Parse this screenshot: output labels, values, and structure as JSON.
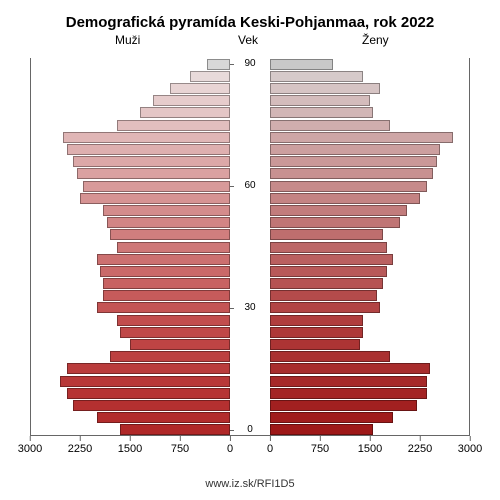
{
  "title": "Demografická pyramída Keski-Pohjanmaa, rok 2022",
  "labels": {
    "men": "Muži",
    "age": "Vek",
    "women": "Ženy"
  },
  "source": "www.iz.sk/RFI1D5",
  "chart": {
    "type": "population-pyramid",
    "x_max": 3000,
    "x_ticks": [
      0,
      750,
      1500,
      2250,
      3000
    ],
    "age_labels_every": 10,
    "age_min": 0,
    "age_max": 90,
    "bar_border_color": "rgba(0,0,0,0.35)",
    "bg_color": "#ffffff",
    "title_fontsize": 15,
    "label_fontsize": 12,
    "tick_fontsize": 11,
    "bars": [
      {
        "age": 90,
        "m": 350,
        "f": 950,
        "cm": "#d8d8d8",
        "cf": "#c8c8c8"
      },
      {
        "age": 87,
        "m": 600,
        "f": 1400,
        "cm": "#e8dada",
        "cf": "#d6caca"
      },
      {
        "age": 84,
        "m": 900,
        "f": 1650,
        "cm": "#e8d4d4",
        "cf": "#d6c4c4"
      },
      {
        "age": 81,
        "m": 1150,
        "f": 1500,
        "cm": "#e6cccc",
        "cf": "#d4bcbc"
      },
      {
        "age": 78,
        "m": 1350,
        "f": 1550,
        "cm": "#e4c6c6",
        "cf": "#d2b6b6"
      },
      {
        "age": 75,
        "m": 1700,
        "f": 1800,
        "cm": "#e2bebe",
        "cf": "#d0aeae"
      },
      {
        "age": 72,
        "m": 2500,
        "f": 2750,
        "cm": "#e0b6b6",
        "cf": "#cea6a6"
      },
      {
        "age": 69,
        "m": 2450,
        "f": 2550,
        "cm": "#deafaf",
        "cf": "#cc9f9f"
      },
      {
        "age": 66,
        "m": 2350,
        "f": 2500,
        "cm": "#dca8a8",
        "cf": "#ca9898"
      },
      {
        "age": 63,
        "m": 2300,
        "f": 2450,
        "cm": "#daa1a1",
        "cf": "#c89191"
      },
      {
        "age": 60,
        "m": 2200,
        "f": 2350,
        "cm": "#d89a9a",
        "cf": "#c68a8a"
      },
      {
        "age": 57,
        "m": 2250,
        "f": 2250,
        "cm": "#d69393",
        "cf": "#c48383"
      },
      {
        "age": 54,
        "m": 1900,
        "f": 2050,
        "cm": "#d48c8c",
        "cf": "#c27c7c"
      },
      {
        "age": 51,
        "m": 1850,
        "f": 1950,
        "cm": "#d28585",
        "cf": "#c07575"
      },
      {
        "age": 48,
        "m": 1800,
        "f": 1700,
        "cm": "#d07e7e",
        "cf": "#be6e6e"
      },
      {
        "age": 45,
        "m": 1700,
        "f": 1750,
        "cm": "#ce7777",
        "cf": "#bc6767"
      },
      {
        "age": 42,
        "m": 2000,
        "f": 1850,
        "cm": "#cc7070",
        "cf": "#ba6060"
      },
      {
        "age": 39,
        "m": 1950,
        "f": 1750,
        "cm": "#ca6969",
        "cf": "#b85959"
      },
      {
        "age": 36,
        "m": 1900,
        "f": 1700,
        "cm": "#c86262",
        "cf": "#b65252"
      },
      {
        "age": 33,
        "m": 1900,
        "f": 1600,
        "cm": "#c65b5b",
        "cf": "#b44b4b"
      },
      {
        "age": 30,
        "m": 2000,
        "f": 1650,
        "cm": "#c45454",
        "cf": "#b24444"
      },
      {
        "age": 27,
        "m": 1700,
        "f": 1400,
        "cm": "#c24d4d",
        "cf": "#b03d3d"
      },
      {
        "age": 24,
        "m": 1650,
        "f": 1400,
        "cm": "#c04848",
        "cf": "#ae3838"
      },
      {
        "age": 21,
        "m": 1500,
        "f": 1350,
        "cm": "#be4444",
        "cf": "#ac3434"
      },
      {
        "age": 18,
        "m": 1800,
        "f": 1800,
        "cm": "#bc4040",
        "cf": "#aa3030"
      },
      {
        "age": 15,
        "m": 2450,
        "f": 2400,
        "cm": "#ba3c3c",
        "cf": "#a82c2c"
      },
      {
        "age": 12,
        "m": 2550,
        "f": 2350,
        "cm": "#b83838",
        "cf": "#a62828"
      },
      {
        "age": 9,
        "m": 2450,
        "f": 2350,
        "cm": "#b63434",
        "cf": "#a42424"
      },
      {
        "age": 6,
        "m": 2350,
        "f": 2200,
        "cm": "#b43030",
        "cf": "#a22020"
      },
      {
        "age": 3,
        "m": 2000,
        "f": 1850,
        "cm": "#b22c2c",
        "cf": "#a01c1c"
      },
      {
        "age": 0,
        "m": 1650,
        "f": 1550,
        "cm": "#b02828",
        "cf": "#9e1818"
      }
    ]
  }
}
